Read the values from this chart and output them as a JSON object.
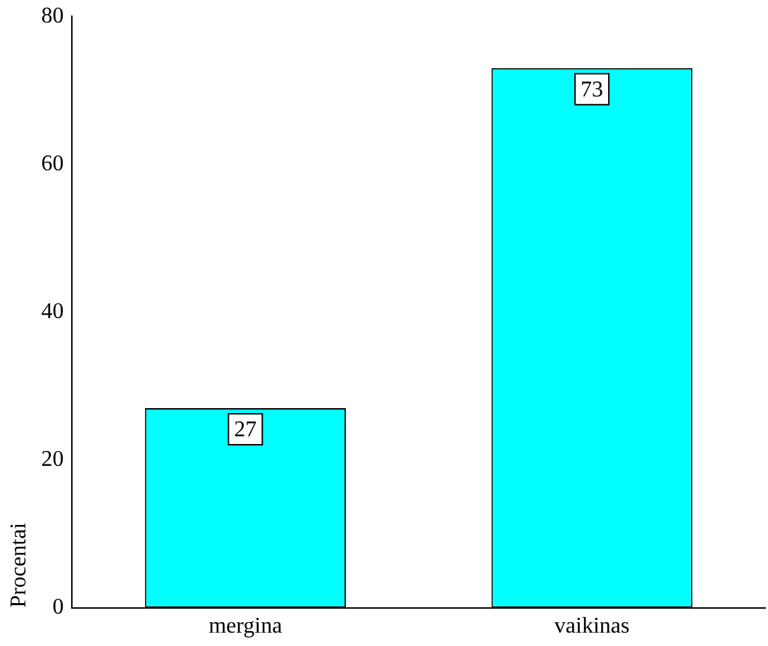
{
  "chart_data": {
    "type": "bar",
    "ylabel": "Procentai",
    "categories": [
      "mergina",
      "vaikinas"
    ],
    "values": [
      27,
      73
    ],
    "color": "#00ffff",
    "ylim": [
      0,
      80
    ],
    "yticks": [
      0,
      20,
      40,
      60,
      80
    ],
    "grid": false,
    "legend": false,
    "data_labels": true
  }
}
